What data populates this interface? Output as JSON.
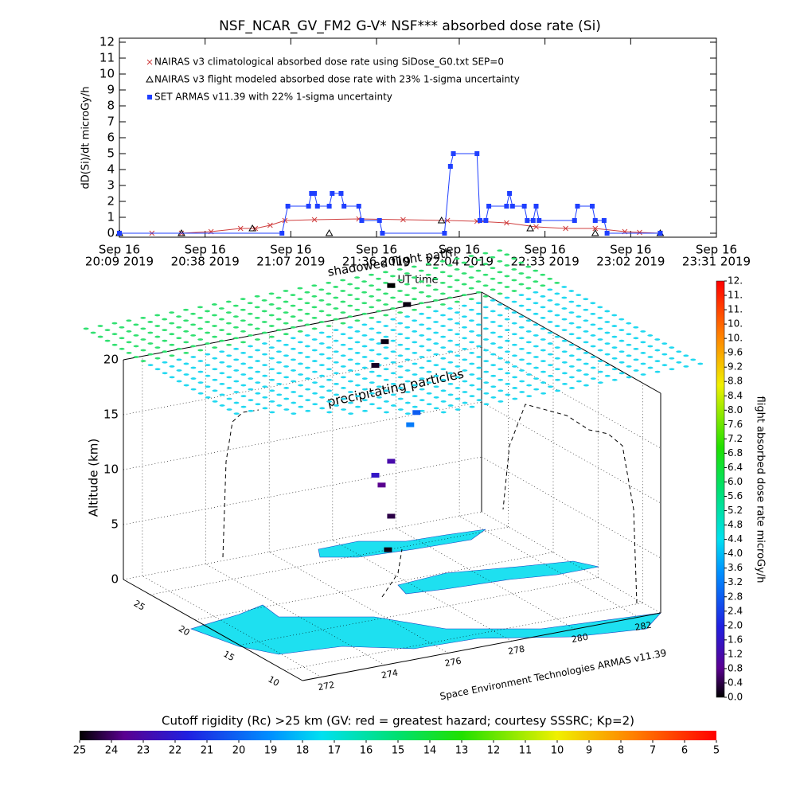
{
  "chart_data": [
    {
      "type": "line",
      "title": "NSF_NCAR_GV_FM2 G-V* NSF*** absorbed dose rate (Si)",
      "ylabel": "dD(Si)/dt microGy/h",
      "xlabel": "UT time",
      "xlim": [
        "2019-09-16T20:09",
        "2019-09-16T23:31"
      ],
      "xticks": [
        {
          "value": "2019-09-16T20:09",
          "label": [
            "Sep 16",
            "20:09 2019"
          ]
        },
        {
          "value": "2019-09-16T20:38",
          "label": [
            "Sep 16",
            "20:38 2019"
          ]
        },
        {
          "value": "2019-09-16T21:07",
          "label": [
            "Sep 16",
            "21:07 2019"
          ]
        },
        {
          "value": "2019-09-16T21:36",
          "label": [
            "Sep 16",
            "21:36 2019"
          ]
        },
        {
          "value": "2019-09-16T22:04",
          "label": [
            "Sep 16",
            "22:04 2019"
          ]
        },
        {
          "value": "2019-09-16T22:33",
          "label": [
            "Sep 16",
            "22:33 2019"
          ]
        },
        {
          "value": "2019-09-16T23:02",
          "label": [
            "Sep 16",
            "23:02 2019"
          ]
        },
        {
          "value": "2019-09-16T23:31",
          "label": [
            "Sep 16",
            "23:31 2019"
          ]
        }
      ],
      "ylim": [
        -0.25,
        12.25
      ],
      "yticks": [
        0,
        1,
        2,
        3,
        4,
        5,
        6,
        7,
        8,
        9,
        10,
        11,
        12
      ],
      "series": [
        {
          "name": "NAIRAS v3 climatological absorbed dose rate using SiDose_G0.txt SEP=0",
          "color": "#d04040",
          "marker": "x",
          "line": true,
          "x": [
            "2019-09-16T20:09",
            "2019-09-16T20:20",
            "2019-09-16T20:30",
            "2019-09-16T20:40",
            "2019-09-16T20:50",
            "2019-09-16T20:55",
            "2019-09-16T21:00",
            "2019-09-16T21:05",
            "2019-09-16T21:15",
            "2019-09-16T21:30",
            "2019-09-16T21:45",
            "2019-09-16T22:00",
            "2019-09-16T22:10",
            "2019-09-16T22:20",
            "2019-09-16T22:30",
            "2019-09-16T22:40",
            "2019-09-16T22:50",
            "2019-09-16T23:00",
            "2019-09-16T23:05",
            "2019-09-16T23:12"
          ],
          "values": [
            0,
            0,
            0,
            0.1,
            0.3,
            0.3,
            0.5,
            0.8,
            0.85,
            0.9,
            0.85,
            0.8,
            0.75,
            0.65,
            0.4,
            0.3,
            0.3,
            0.1,
            0.05,
            0
          ]
        },
        {
          "name": "NAIRAS v3 flight modeled absorbed dose rate with 23% 1-sigma uncertainty",
          "color": "#000000",
          "marker": "triangle",
          "line": false,
          "x": [
            "2019-09-16T20:09",
            "2019-09-16T20:30",
            "2019-09-16T20:54",
            "2019-09-16T21:20",
            "2019-09-16T21:58",
            "2019-09-16T22:28",
            "2019-09-16T22:50",
            "2019-09-16T23:12"
          ],
          "values": [
            0,
            0,
            0.3,
            0,
            0.8,
            0.3,
            0,
            0
          ]
        },
        {
          "name": "SET ARMAS v11.39 with 22% 1-sigma uncertainty",
          "color": "#1f3fff",
          "marker": "square",
          "line": true,
          "x": [
            "2019-09-16T20:09",
            "2019-09-16T21:04",
            "2019-09-16T21:06",
            "2019-09-16T21:13",
            "2019-09-16T21:14",
            "2019-09-16T21:15",
            "2019-09-16T21:16",
            "2019-09-16T21:20",
            "2019-09-16T21:21",
            "2019-09-16T21:24",
            "2019-09-16T21:25",
            "2019-09-16T21:30",
            "2019-09-16T21:31",
            "2019-09-16T21:37",
            "2019-09-16T21:38",
            "2019-09-16T21:59",
            "2019-09-16T22:01",
            "2019-09-16T22:02",
            "2019-09-16T22:10",
            "2019-09-16T22:11",
            "2019-09-16T22:13",
            "2019-09-16T22:14",
            "2019-09-16T22:20",
            "2019-09-16T22:21",
            "2019-09-16T22:22",
            "2019-09-16T22:26",
            "2019-09-16T22:27",
            "2019-09-16T22:29",
            "2019-09-16T22:30",
            "2019-09-16T22:31",
            "2019-09-16T22:43",
            "2019-09-16T22:44",
            "2019-09-16T22:49",
            "2019-09-16T22:50",
            "2019-09-16T22:53",
            "2019-09-16T22:54",
            "2019-09-16T23:12"
          ],
          "values": [
            0,
            0,
            1.7,
            1.7,
            2.5,
            2.5,
            1.7,
            1.7,
            2.5,
            2.5,
            1.7,
            1.7,
            0.8,
            0.8,
            0,
            0,
            4.2,
            5.0,
            5.0,
            0.8,
            0.8,
            1.7,
            1.7,
            2.5,
            1.7,
            1.7,
            0.8,
            0.8,
            1.7,
            0.8,
            0.8,
            1.7,
            1.7,
            0.8,
            0.8,
            0,
            0
          ]
        }
      ]
    },
    {
      "type": "flight3d",
      "annotations": [
        "shadowed flight path",
        "precipitating particles"
      ],
      "credit": "Space Environment Technologies ARMAS v11.39",
      "zlabel": "Altitude (km)",
      "zlim": [
        0,
        20
      ],
      "zticks": [
        0,
        5,
        10,
        15,
        20
      ],
      "latlim": [
        8,
        28
      ],
      "latticks": [
        10,
        15,
        20,
        25
      ],
      "lonlim": [
        271.4,
        282.7
      ],
      "lonticks": [
        272,
        274,
        276,
        278,
        280,
        282
      ],
      "flight": {
        "lon": [
          278.9,
          279.0,
          278.7,
          278.5,
          279.0,
          279.6,
          279.8,
          278.5,
          278.8,
          279.5,
          279.0
        ],
        "lat": [
          25,
          25,
          25,
          25,
          25,
          25,
          25,
          25,
          25,
          25,
          25
        ],
        "alt": [
          0,
          3,
          6,
          7,
          8,
          11,
          12,
          17,
          19,
          22,
          24
        ],
        "dose": [
          0.1,
          0.4,
          0.8,
          1.6,
          1.2,
          3.2,
          2.8,
          0.2,
          0.1,
          0.1,
          0
        ]
      }
    },
    {
      "type": "colorbar",
      "orientation": "vertical",
      "label": "flight absorbed dose rate microGy/h",
      "lim": [
        0,
        11.6
      ],
      "ticks": [
        {
          "value": 0,
          "label": "0.0"
        },
        0.4,
        0.8,
        1.2,
        1.6,
        {
          "value": 2,
          "label": "2.0"
        },
        2.4,
        2.8,
        3.2,
        3.6,
        {
          "value": 4,
          "label": "4.0"
        },
        4.4,
        4.8,
        5.2,
        5.6,
        {
          "value": 6,
          "label": "6.0"
        },
        6.4,
        6.8,
        7.2,
        7.6,
        {
          "value": 8,
          "label": "8.0"
        },
        8.4,
        8.8,
        9.2,
        9.6,
        {
          "value": 10,
          "label": "10."
        },
        {
          "value": 10.4,
          "label": "10."
        },
        {
          "value": 10.8,
          "label": "11."
        },
        {
          "value": 11.2,
          "label": "11."
        },
        {
          "value": 11.6,
          "label": "12."
        }
      ]
    },
    {
      "type": "colorbar",
      "orientation": "horizontal",
      "label": "Cutoff rigidity (Rc) >25 km (GV: red = greatest hazard; courtesy SSSRC; Kp=2)",
      "lim": [
        25,
        5
      ],
      "ticks": [
        25,
        24,
        23,
        22,
        21,
        20,
        19,
        18,
        17,
        16,
        15,
        14,
        13,
        12,
        11,
        10,
        9,
        8,
        7,
        6,
        5
      ]
    }
  ]
}
